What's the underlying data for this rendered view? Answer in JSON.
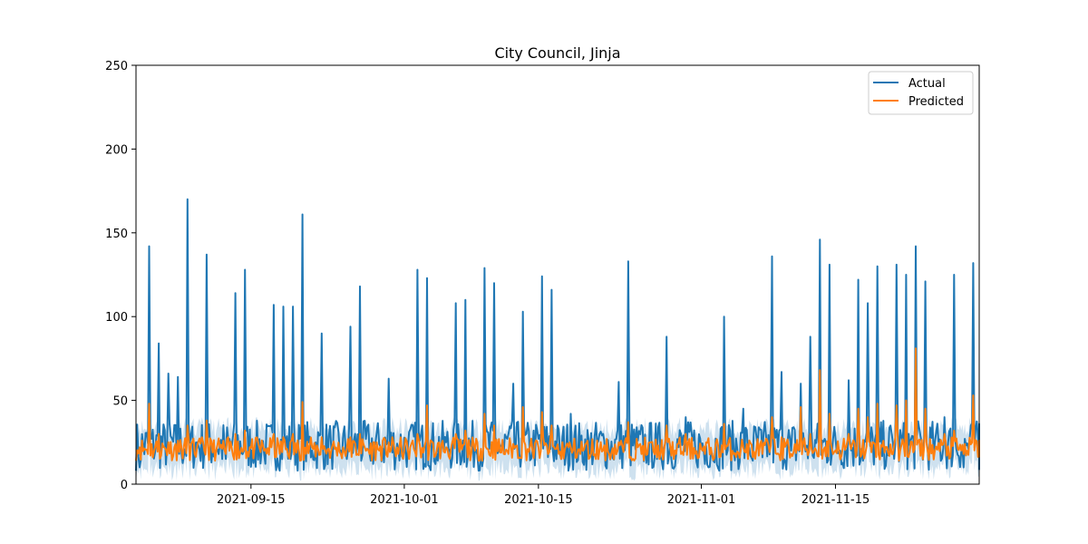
{
  "chart_data": {
    "type": "line",
    "title": "City Council, Jinja",
    "xlabel": "",
    "ylabel": "",
    "xlim": [
      "2021-09-03",
      "2021-11-30"
    ],
    "ylim": [
      0,
      250
    ],
    "yticks": [
      0,
      50,
      100,
      150,
      200,
      250
    ],
    "xticks": [
      "2021-09-15",
      "2021-10-01",
      "2021-10-15",
      "2021-11-01",
      "2021-11-15"
    ],
    "legend": {
      "position": "top-right",
      "entries": [
        "Actual",
        "Predicted"
      ]
    },
    "grid": false,
    "colors": {
      "actual": "#1f77b4",
      "predicted": "#ff7f0e",
      "band": "#1f77b4"
    },
    "series": [
      {
        "name": "Actual",
        "x": [
          "2021-09-03",
          "2021-09-04",
          "2021-09-05",
          "2021-09-06",
          "2021-09-07",
          "2021-09-08",
          "2021-09-09",
          "2021-09-10",
          "2021-09-11",
          "2021-09-12",
          "2021-09-13",
          "2021-09-14",
          "2021-09-15",
          "2021-09-16",
          "2021-09-17",
          "2021-09-18",
          "2021-09-19",
          "2021-09-20",
          "2021-09-21",
          "2021-09-22",
          "2021-09-23",
          "2021-09-24",
          "2021-09-25",
          "2021-09-26",
          "2021-09-27",
          "2021-09-28",
          "2021-09-29",
          "2021-09-30",
          "2021-10-01",
          "2021-10-02",
          "2021-10-03",
          "2021-10-04",
          "2021-10-05",
          "2021-10-06",
          "2021-10-07",
          "2021-10-08",
          "2021-10-09",
          "2021-10-10",
          "2021-10-11",
          "2021-10-12",
          "2021-10-13",
          "2021-10-14",
          "2021-10-15",
          "2021-10-16",
          "2021-10-17",
          "2021-10-18",
          "2021-10-19",
          "2021-10-20",
          "2021-10-21",
          "2021-10-22",
          "2021-10-23",
          "2021-10-24",
          "2021-10-25",
          "2021-10-26",
          "2021-10-27",
          "2021-10-28",
          "2021-10-29",
          "2021-10-30",
          "2021-10-31",
          "2021-11-01",
          "2021-11-02",
          "2021-11-03",
          "2021-11-04",
          "2021-11-05",
          "2021-11-06",
          "2021-11-07",
          "2021-11-08",
          "2021-11-09",
          "2021-11-10",
          "2021-11-11",
          "2021-11-12",
          "2021-11-13",
          "2021-11-14",
          "2021-11-15",
          "2021-11-16",
          "2021-11-17",
          "2021-11-18",
          "2021-11-19",
          "2021-11-20",
          "2021-11-21",
          "2021-11-22",
          "2021-11-23",
          "2021-11-24",
          "2021-11-25",
          "2021-11-26",
          "2021-11-27",
          "2021-11-28",
          "2021-11-29",
          "2021-11-30"
        ],
        "values": [
          10,
          142,
          84,
          66,
          64,
          170,
          25,
          137,
          20,
          15,
          114,
          128,
          20,
          18,
          107,
          106,
          106,
          161,
          20,
          90,
          22,
          20,
          94,
          118,
          18,
          24,
          63,
          21,
          22,
          128,
          123,
          18,
          25,
          108,
          110,
          20,
          129,
          120,
          19,
          60,
          103,
          20,
          124,
          116,
          15,
          42,
          20,
          18,
          30,
          20,
          61,
          133,
          26,
          20,
          15,
          88,
          18,
          40,
          20,
          12,
          13,
          100,
          20,
          45,
          14,
          16,
          136,
          67,
          20,
          60,
          88,
          146,
          131,
          20,
          62,
          122,
          108,
          130,
          20,
          131,
          125,
          142,
          121,
          25,
          40,
          125,
          10,
          132,
          36
        ]
      },
      {
        "name": "Predicted",
        "x": [
          "2021-09-03",
          "2021-09-04",
          "2021-09-05",
          "2021-09-06",
          "2021-09-07",
          "2021-09-08",
          "2021-09-09",
          "2021-09-10",
          "2021-09-11",
          "2021-09-12",
          "2021-09-13",
          "2021-09-14",
          "2021-09-15",
          "2021-09-16",
          "2021-09-17",
          "2021-09-18",
          "2021-09-19",
          "2021-09-20",
          "2021-09-21",
          "2021-09-22",
          "2021-09-23",
          "2021-09-24",
          "2021-09-25",
          "2021-09-26",
          "2021-09-27",
          "2021-09-28",
          "2021-09-29",
          "2021-09-30",
          "2021-10-01",
          "2021-10-02",
          "2021-10-03",
          "2021-10-04",
          "2021-10-05",
          "2021-10-06",
          "2021-10-07",
          "2021-10-08",
          "2021-10-09",
          "2021-10-10",
          "2021-10-11",
          "2021-10-12",
          "2021-10-13",
          "2021-10-14",
          "2021-10-15",
          "2021-10-16",
          "2021-10-17",
          "2021-10-18",
          "2021-10-19",
          "2021-10-20",
          "2021-10-21",
          "2021-10-22",
          "2021-10-23",
          "2021-10-24",
          "2021-10-25",
          "2021-10-26",
          "2021-10-27",
          "2021-10-28",
          "2021-10-29",
          "2021-10-30",
          "2021-10-31",
          "2021-11-01",
          "2021-11-02",
          "2021-11-03",
          "2021-11-04",
          "2021-11-05",
          "2021-11-06",
          "2021-11-07",
          "2021-11-08",
          "2021-11-09",
          "2021-11-10",
          "2021-11-11",
          "2021-11-12",
          "2021-11-13",
          "2021-11-14",
          "2021-11-15",
          "2021-11-16",
          "2021-11-17",
          "2021-11-18",
          "2021-11-19",
          "2021-11-20",
          "2021-11-21",
          "2021-11-22",
          "2021-11-23",
          "2021-11-24",
          "2021-11-25",
          "2021-11-26",
          "2021-11-27",
          "2021-11-28",
          "2021-11-29",
          "2021-11-30"
        ],
        "values": [
          22,
          48,
          30,
          25,
          26,
          35,
          22,
          38,
          20,
          18,
          30,
          32,
          22,
          20,
          30,
          28,
          30,
          49,
          22,
          28,
          20,
          18,
          28,
          30,
          18,
          20,
          25,
          18,
          20,
          30,
          47,
          20,
          22,
          30,
          32,
          20,
          42,
          35,
          18,
          24,
          46,
          20,
          43,
          35,
          15,
          22,
          18,
          16,
          20,
          18,
          25,
          37,
          22,
          18,
          16,
          35,
          18,
          30,
          18,
          18,
          16,
          36,
          18,
          22,
          16,
          18,
          40,
          28,
          18,
          46,
          30,
          68,
          42,
          20,
          30,
          45,
          40,
          48,
          22,
          47,
          50,
          81,
          45,
          20,
          30,
          32,
          18,
          53,
          25
        ]
      }
    ]
  }
}
